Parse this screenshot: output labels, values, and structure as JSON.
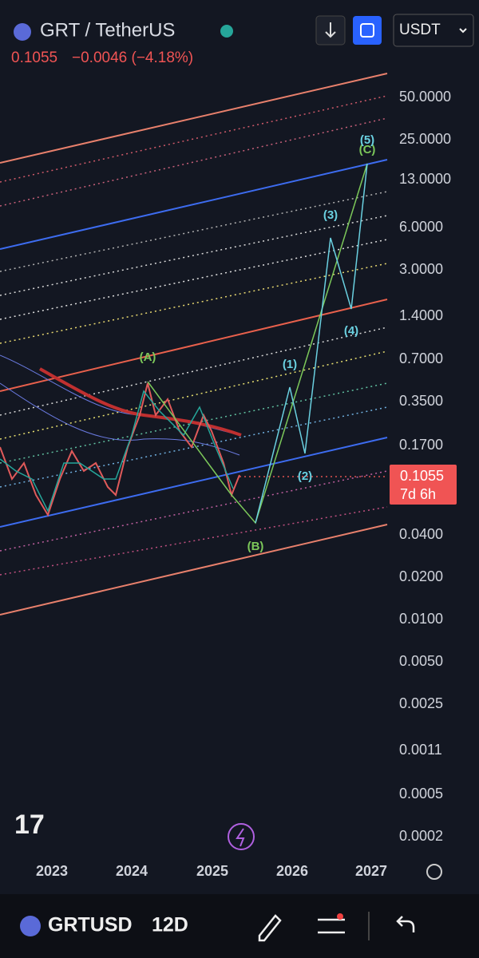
{
  "header": {
    "symbol": "GRT / TetherUS",
    "price": "0.1055",
    "change": "−0.0046 (−4.18%)",
    "currency": "USDT"
  },
  "price_axis": {
    "ticks": [
      "50.0000",
      "25.0000",
      "13.0000",
      "6.0000",
      "3.0000",
      "1.4000",
      "0.7000",
      "0.3500",
      "0.1700",
      "0.0400",
      "0.0200",
      "0.0100",
      "0.0050",
      "0.0025",
      "0.0011",
      "0.0005",
      "0.0002"
    ],
    "last_price": "0.1055",
    "countdown": "7d 6h"
  },
  "time_axis": {
    "ticks": [
      "2023",
      "2024",
      "2025",
      "2026",
      "2027"
    ]
  },
  "waves": [
    "(A)",
    "(B)",
    "(C)",
    "(1)",
    "(2)",
    "(3)",
    "(4)",
    "(5)"
  ],
  "bottom_bar": {
    "symbol": "GRTUSD",
    "interval": "12D"
  }
}
